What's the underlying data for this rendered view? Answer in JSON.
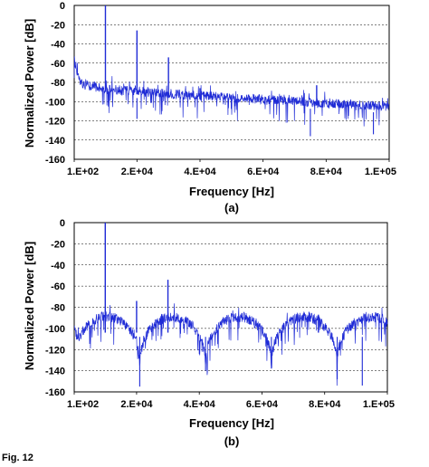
{
  "chart_data": [
    {
      "type": "line",
      "panel_label": "(a)",
      "xlabel": "Frequency [Hz]",
      "ylabel": "Normalized Power [dB]",
      "xlim": [
        100,
        100000
      ],
      "ylim": [
        -160,
        0
      ],
      "x_ticks": [
        "1.E+02",
        "2.E+04",
        "4.E+04",
        "6.E+04",
        "8.E+04",
        "1.E+05"
      ],
      "y_ticks": [
        "0",
        "-20",
        "-40",
        "-60",
        "-80",
        "-100",
        "-120",
        "-140",
        "-160"
      ],
      "grid": "horizontal dashed",
      "line_color": "#1f2bd6",
      "noise_floor": [
        [
          100,
          -55
        ],
        [
          2000,
          -80
        ],
        [
          10000,
          -86
        ],
        [
          40000,
          -93
        ],
        [
          100000,
          -104
        ]
      ],
      "peaks": [
        {
          "x": 10000,
          "y": 0
        },
        {
          "x": 20000,
          "y": -26
        },
        {
          "x": 30000,
          "y": -54
        },
        {
          "x": 40000,
          "y": -86
        },
        {
          "x": 77000,
          "y": -83
        }
      ],
      "dips": [
        {
          "x": 20000,
          "y": -118
        },
        {
          "x": 75000,
          "y": -136
        },
        {
          "x": 95000,
          "y": -134
        }
      ]
    },
    {
      "type": "line",
      "panel_label": "(b)",
      "xlabel": "Frequency [Hz]",
      "ylabel": "Normalized Power [dB]",
      "xlim": [
        100,
        100000
      ],
      "ylim": [
        -160,
        0
      ],
      "x_ticks": [
        "1.E+02",
        "2.E+04",
        "4.E+04",
        "6.E+04",
        "8.E+04",
        "1.E+05"
      ],
      "y_ticks": [
        "0",
        "-20",
        "-40",
        "-60",
        "-80",
        "-100",
        "-120",
        "-140",
        "-160"
      ],
      "grid": "horizontal dashed",
      "line_color": "#1f2bd6",
      "envelope_lobe_period": 21000,
      "envelope_peak_db": -88,
      "envelope_null_db": -140,
      "peaks": [
        {
          "x": 10000,
          "y": 0
        },
        {
          "x": 20000,
          "y": -74
        },
        {
          "x": 30000,
          "y": -54
        },
        {
          "x": 78000,
          "y": -87
        }
      ],
      "dips": [
        {
          "x": 21000,
          "y": -155
        },
        {
          "x": 42000,
          "y": -140
        },
        {
          "x": 63000,
          "y": -138
        },
        {
          "x": 84000,
          "y": -148
        },
        {
          "x": 92000,
          "y": -154
        }
      ]
    }
  ],
  "caption": "Fig. 12"
}
